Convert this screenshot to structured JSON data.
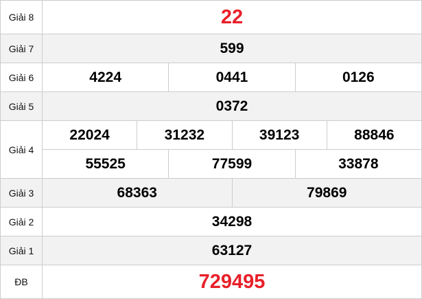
{
  "colors": {
    "special": "#e8202a",
    "border": "#cccccc",
    "alt_row": "#f2f2f2"
  },
  "rows": [
    {
      "label": "Giải 8",
      "lines": [
        [
          "22"
        ]
      ]
    },
    {
      "label": "Giải 7",
      "lines": [
        [
          "599"
        ]
      ]
    },
    {
      "label": "Giải 6",
      "lines": [
        [
          "4224",
          "0441",
          "0126"
        ]
      ]
    },
    {
      "label": "Giải 5",
      "lines": [
        [
          "0372"
        ]
      ]
    },
    {
      "label": "Giải 4",
      "lines": [
        [
          "22024",
          "31232",
          "39123",
          "88846"
        ],
        [
          "55525",
          "77599",
          "33878"
        ]
      ]
    },
    {
      "label": "Giải 3",
      "lines": [
        [
          "68363",
          "79869"
        ]
      ]
    },
    {
      "label": "Giải 2",
      "lines": [
        [
          "34298"
        ]
      ]
    },
    {
      "label": "Giải 1",
      "lines": [
        [
          "63127"
        ]
      ]
    },
    {
      "label": "ĐB",
      "lines": [
        [
          "729495"
        ]
      ]
    }
  ]
}
